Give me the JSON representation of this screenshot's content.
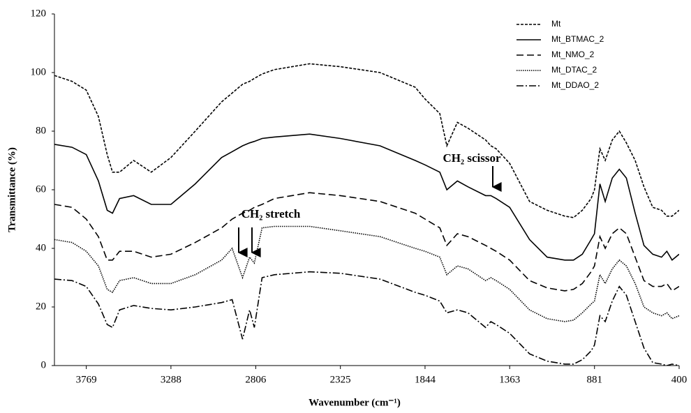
{
  "chart_data": {
    "type": "line",
    "xlabel": "Wavenumber (cm⁻¹)",
    "ylabel": "Transmittance (%)",
    "xlim": [
      3950,
      400
    ],
    "ylim": [
      0,
      120
    ],
    "xticks": [
      3769,
      3288,
      2806,
      2325,
      1844,
      1363,
      881,
      400
    ],
    "yticks": [
      0,
      20,
      40,
      60,
      80,
      100,
      120
    ],
    "grid": false,
    "legend": "upper right",
    "annotations": [
      "CH₂ stretch",
      "CH₂ scissor"
    ],
    "x": [
      3950,
      3850,
      3769,
      3700,
      3650,
      3620,
      3580,
      3500,
      3400,
      3288,
      3150,
      3000,
      2940,
      2881,
      2841,
      2814,
      2770,
      2700,
      2500,
      2325,
      2100,
      1900,
      1844,
      1760,
      1720,
      1660,
      1600,
      1500,
      1470,
      1440,
      1363,
      1250,
      1150,
      1050,
      1000,
      950,
      900,
      881,
      850,
      820,
      780,
      740,
      700,
      650,
      600,
      550,
      500,
      470,
      440,
      400
    ],
    "series": [
      {
        "name": "Mt",
        "color": "#000000",
        "dash": "4 2",
        "values": [
          99,
          97,
          94,
          85,
          72,
          66,
          66,
          70,
          66,
          71,
          80,
          90,
          93,
          96,
          97,
          98,
          99.5,
          101,
          103,
          102,
          100,
          95,
          91,
          86,
          75,
          83,
          81,
          77,
          75,
          74,
          69,
          56,
          53,
          51,
          50.5,
          53,
          57,
          60,
          74,
          70,
          77,
          80,
          76,
          70,
          61,
          54,
          53,
          51,
          51,
          53
        ]
      },
      {
        "name": "Mt_BTMAC_2",
        "color": "#000000",
        "dash": "none",
        "values": [
          75.5,
          74.5,
          72,
          63,
          53,
          52,
          57,
          58,
          55,
          55,
          62,
          71,
          73,
          75,
          76,
          76.5,
          77.5,
          78,
          79,
          77.5,
          75,
          70,
          68.5,
          66,
          60,
          63,
          61,
          58,
          58,
          57,
          54,
          43,
          37,
          36,
          36,
          38,
          43,
          45,
          62,
          56,
          64,
          67,
          64,
          52,
          41,
          38,
          37,
          39,
          36,
          38
        ]
      },
      {
        "name": "Mt_NMO_2",
        "color": "#000000",
        "dash": "10 5",
        "values": [
          55,
          54,
          50,
          44,
          36,
          36,
          39,
          39,
          37,
          38,
          42,
          47,
          50,
          52,
          53,
          54,
          55,
          57,
          59,
          58,
          56,
          52,
          50,
          47,
          41,
          45,
          44,
          41,
          40,
          39,
          36,
          29,
          26.5,
          25.5,
          26,
          28,
          32,
          34,
          44,
          40,
          45,
          47,
          45,
          37,
          29,
          27,
          27,
          28,
          25.5,
          27
        ]
      },
      {
        "name": "Mt_DTAC_2",
        "color": "#000000",
        "dash": "1.5 1.5",
        "values": [
          43,
          42,
          39,
          34,
          26,
          25,
          29,
          30,
          28,
          28,
          31,
          36,
          40,
          30,
          37,
          35,
          47,
          47.5,
          47.5,
          46,
          44,
          40,
          39,
          37,
          31,
          34,
          33,
          29,
          30,
          29,
          26,
          19,
          16,
          15,
          15.5,
          18,
          21,
          22,
          31,
          28,
          33,
          36,
          34,
          28,
          20,
          18,
          17,
          18,
          16,
          17
        ]
      },
      {
        "name": "Mt_DDAO_2",
        "color": "#000000",
        "dash": "10 3 2 3",
        "values": [
          29.5,
          29,
          27,
          21,
          14,
          13,
          19,
          20.5,
          19.5,
          19,
          20,
          21.5,
          22.5,
          9,
          19,
          13,
          30,
          31,
          32,
          31.5,
          29.5,
          25,
          24,
          22,
          18,
          19,
          18,
          13,
          15,
          14,
          11,
          4,
          1.5,
          0.5,
          0.5,
          2,
          5,
          7,
          17,
          15,
          22,
          27,
          24,
          15,
          6,
          1,
          0.5,
          0,
          0.5,
          0
        ]
      }
    ]
  }
}
